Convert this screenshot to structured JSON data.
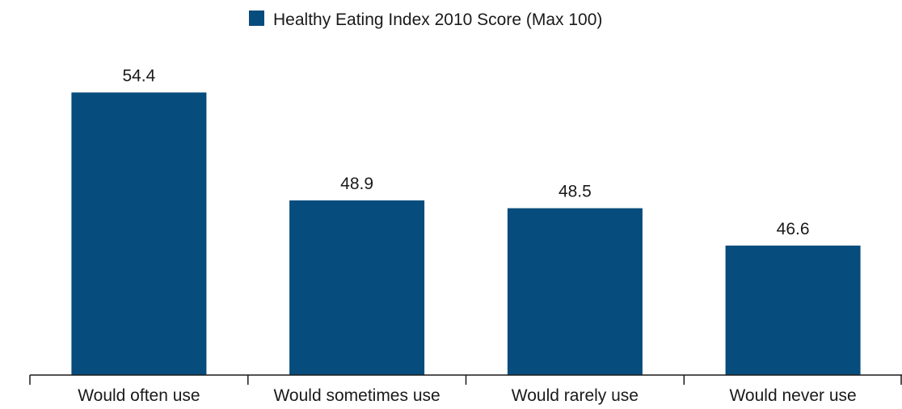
{
  "chart_data": {
    "type": "bar",
    "categories": [
      "Would often use",
      "Would sometimes use",
      "Would rarely use",
      "Would never use"
    ],
    "series": [
      {
        "name": "Healthy Eating Index 2010 Score (Max 100)",
        "values": [
          54.4,
          48.9,
          48.5,
          46.6
        ],
        "color": "#064c7c"
      }
    ],
    "data_labels": [
      "54.4",
      "48.9",
      "48.5",
      "46.6"
    ],
    "title": "",
    "xlabel": "",
    "ylabel": "",
    "ylim": [
      40.0,
      57.3
    ],
    "grid": false,
    "legend_position": "top-center",
    "y_axis_visible": false
  }
}
